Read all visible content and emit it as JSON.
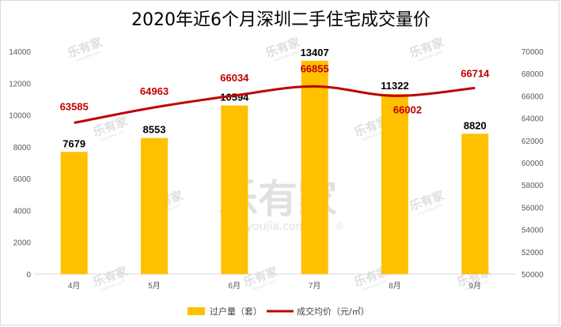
{
  "chart_data": {
    "type": "bar",
    "title": "2020年近6个月深圳二手住宅成交量价",
    "categories": [
      "4月",
      "5月",
      "6月",
      "7月",
      "8月",
      "9月"
    ],
    "series": [
      {
        "name": "过户量（套）",
        "type": "bar",
        "axis": "left",
        "color": "#ffc000",
        "values": [
          7679,
          8553,
          10594,
          13407,
          11322,
          8820
        ]
      },
      {
        "name": "成交均价（元/㎡）",
        "type": "line",
        "axis": "right",
        "color": "#c00000",
        "values": [
          63585,
          64963,
          66034,
          66855,
          66002,
          66714
        ]
      }
    ],
    "y_left": {
      "min": 0,
      "max": 14000,
      "step": 2000
    },
    "y_right": {
      "min": 50000,
      "max": 70000,
      "step": 2000
    },
    "grid": false,
    "legend_position": "bottom"
  },
  "watermark": {
    "brand": "乐有家",
    "domain": "Leyoujia.com",
    "mark": "®"
  }
}
